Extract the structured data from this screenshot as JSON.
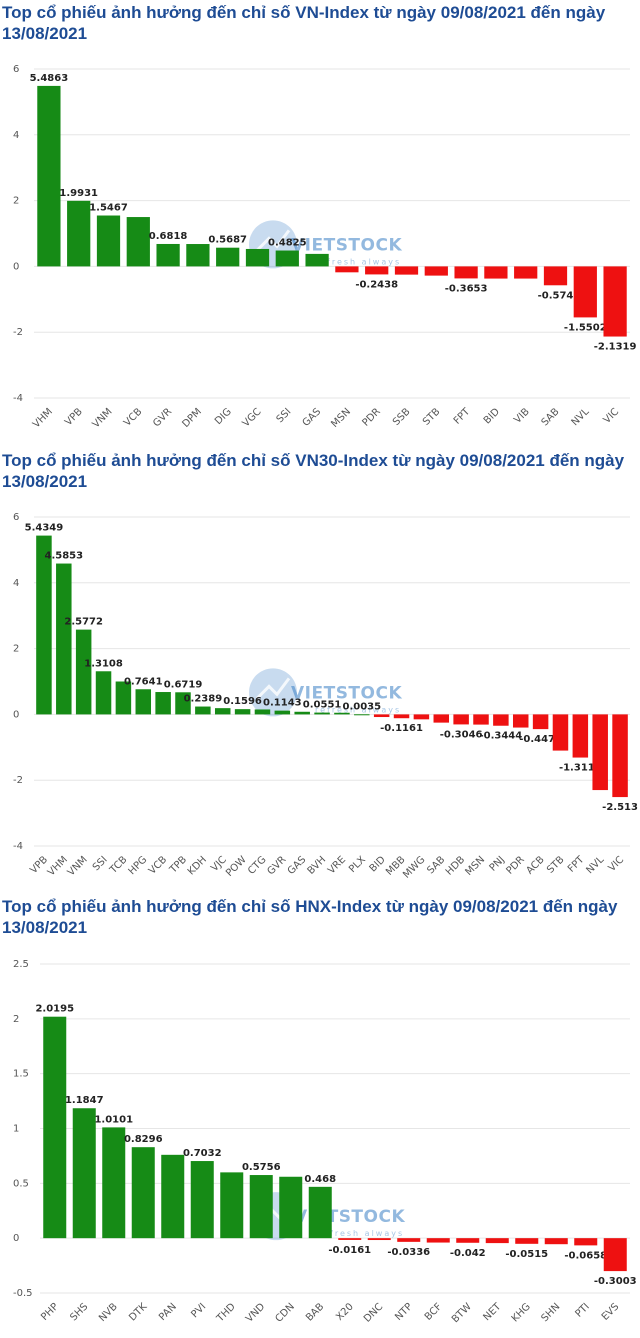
{
  "colors": {
    "positive": "#168b16",
    "negative": "#ee1111",
    "title": "#1e4c94",
    "grid": "#e6e6e6"
  },
  "watermark": {
    "brand": "VIETSTOCK",
    "tagline": "refresh always"
  },
  "chart_data": [
    {
      "type": "bar",
      "title": "Top cổ phiếu ảnh hưởng đến chỉ số VN-Index từ ngày 09/08/2021 đến ngày 13/08/2021",
      "categories": [
        "VHM",
        "VPB",
        "VNM",
        "VCB",
        "GVR",
        "DPM",
        "DIG",
        "VGC",
        "SSI",
        "GAS",
        "MSN",
        "PDR",
        "SSB",
        "STB",
        "FPT",
        "BID",
        "VIB",
        "SAB",
        "NVL",
        "VIC"
      ],
      "values": [
        5.4863,
        1.9931,
        1.5467,
        1.5,
        0.6818,
        0.68,
        0.5687,
        0.53,
        0.4825,
        0.38,
        -0.18,
        -0.2438,
        -0.25,
        -0.28,
        -0.3653,
        -0.37,
        -0.37,
        -0.574,
        -1.5502,
        -2.1319
      ],
      "data_labels": [
        "5.4863",
        "1.9931",
        "1.5467",
        "",
        "0.6818",
        "",
        "0.5687",
        "",
        "0.4825",
        "",
        "",
        "-0.2438",
        "",
        "",
        "-0.3653",
        "",
        "",
        "-0.574",
        "-1.5502",
        "-2.1319"
      ],
      "ylim": [
        -4,
        6
      ],
      "yticks": [
        -4,
        -2,
        0,
        2,
        4,
        6
      ],
      "grid": true
    },
    {
      "type": "bar",
      "title": "Top cổ phiếu ảnh hưởng đến chỉ số VN30-Index từ ngày 09/08/2021 đến ngày 13/08/2021",
      "categories": [
        "VPB",
        "VHM",
        "VNM",
        "SSI",
        "TCB",
        "HPG",
        "VCB",
        "TPB",
        "KDH",
        "VJC",
        "POW",
        "CTG",
        "GVR",
        "GAS",
        "BVH",
        "VRE",
        "PLX",
        "BID",
        "MBB",
        "MWG",
        "SAB",
        "HDB",
        "MSN",
        "PNJ",
        "PDR",
        "ACB",
        "STB",
        "FPT",
        "NVL",
        "VIC"
      ],
      "values": [
        5.4349,
        4.5853,
        2.5772,
        1.3108,
        1.0,
        0.7641,
        0.68,
        0.6719,
        0.2389,
        0.19,
        0.1596,
        0.15,
        0.1143,
        0.08,
        0.0551,
        0.05,
        0.0035,
        -0.08,
        -0.1161,
        -0.15,
        -0.25,
        -0.3046,
        -0.31,
        -0.3444,
        -0.4,
        -0.4471,
        -1.1,
        -1.3117,
        -2.3,
        -2.513
      ],
      "data_labels": [
        "5.4349",
        "4.5853",
        "2.5772",
        "1.3108",
        "",
        "0.7641",
        "",
        "0.6719",
        "0.2389",
        "",
        "0.1596",
        "",
        "0.1143",
        "",
        "0.0551",
        "",
        "0.0035",
        "",
        "-0.1161",
        "",
        "",
        "-0.3046",
        "",
        "-0.3444",
        "",
        "-0.4471",
        "",
        "-1.3117",
        "",
        "-2.513"
      ],
      "ylim": [
        -4,
        6
      ],
      "yticks": [
        -4,
        -2,
        0,
        2,
        4,
        6
      ],
      "grid": true
    },
    {
      "type": "bar",
      "title": "Top cổ phiếu ảnh hưởng đến chỉ số HNX-Index từ ngày 09/08/2021 đến ngày 13/08/2021",
      "categories": [
        "PHP",
        "SHS",
        "NVB",
        "DTK",
        "PAN",
        "PVI",
        "THD",
        "VND",
        "CDN",
        "BAB",
        "X20",
        "DNC",
        "NTP",
        "BCF",
        "BTW",
        "NET",
        "KHG",
        "SHN",
        "PTI",
        "EVS"
      ],
      "values": [
        2.0195,
        1.1847,
        1.0101,
        0.8296,
        0.76,
        0.7032,
        0.6,
        0.5756,
        0.56,
        0.468,
        -0.0161,
        -0.017,
        -0.0336,
        -0.04,
        -0.042,
        -0.045,
        -0.0515,
        -0.055,
        -0.0658,
        -0.3003
      ],
      "data_labels": [
        "2.0195",
        "1.1847",
        "1.0101",
        "0.8296",
        "",
        "0.7032",
        "",
        "0.5756",
        "",
        "0.468",
        "-0.0161",
        "",
        "-0.0336",
        "",
        "-0.042",
        "",
        "-0.0515",
        "",
        "-0.0658",
        "-0.3003"
      ],
      "ylim": [
        -0.5,
        2.5
      ],
      "yticks": [
        -0.5,
        0,
        0.5,
        1,
        1.5,
        2,
        2.5
      ],
      "grid": true
    }
  ]
}
